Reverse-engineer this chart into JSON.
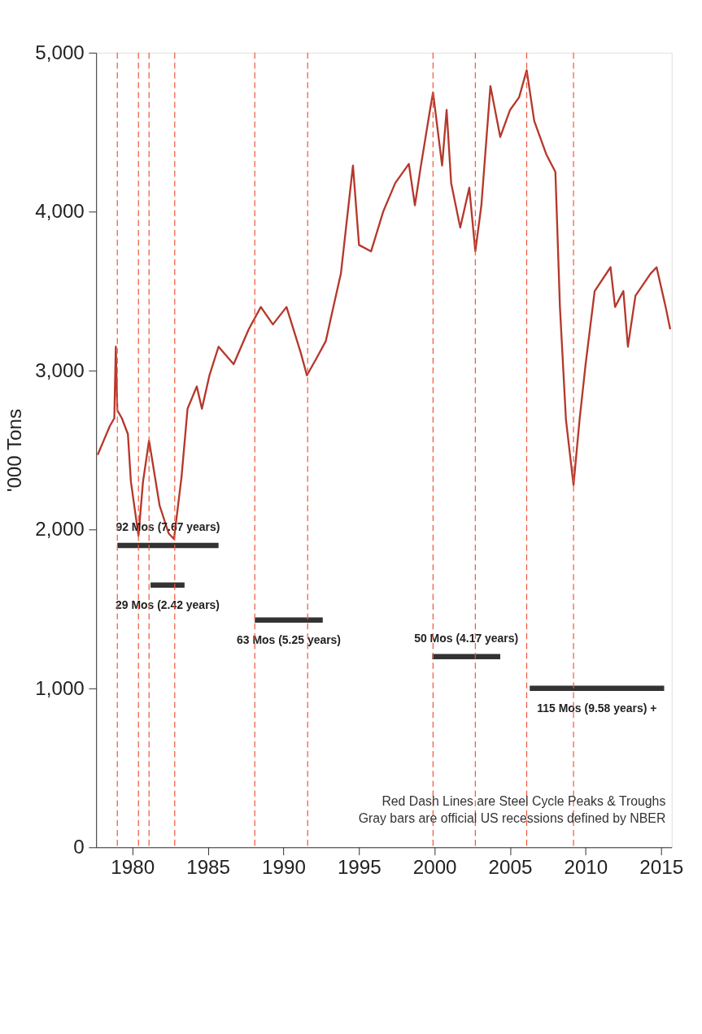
{
  "chart_data": {
    "type": "line",
    "ylabel": "'000 Tons",
    "xlim": [
      1977.6,
      2015.7
    ],
    "xticks": [
      1980,
      1985,
      1990,
      1995,
      2000,
      2005,
      2010,
      2015
    ],
    "ylim": [
      0,
      5000
    ],
    "yticks": [
      {
        "value": 0,
        "label": "0"
      },
      {
        "value": 1000,
        "label": "1,000"
      },
      {
        "value": 2000,
        "label": "2,000"
      },
      {
        "value": 3000,
        "label": "3,000"
      },
      {
        "value": 4000,
        "label": "4,000"
      },
      {
        "value": 5000,
        "label": "5,000"
      }
    ],
    "grid": false,
    "series": [
      {
        "color": "#b5382c",
        "x": [
          1977.7,
          1978.1,
          1978.5,
          1978.8,
          1978.9,
          1979.0,
          1979.3,
          1979.7,
          1979.9,
          1980.4,
          1980.7,
          1981.1,
          1981.8,
          1982.4,
          1982.75,
          1983.25,
          1983.65,
          1984.26,
          1984.6,
          1985.1,
          1985.7,
          1986.7,
          1987.7,
          1988.5,
          1989.3,
          1990.2,
          1991.15,
          1991.55,
          1992.2,
          1992.8,
          1993.3,
          1993.8,
          1994.6,
          1995.0,
          1995.8,
          1996.6,
          1997.4,
          1998.3,
          1998.7,
          1999.1,
          1999.7,
          1999.9,
          2000.5,
          2000.8,
          2001.1,
          2001.7,
          2002.3,
          2002.7,
          2003.1,
          2003.7,
          2004.35,
          2005.0,
          2005.6,
          2006.1,
          2006.6,
          2007.4,
          2008.0,
          2008.3,
          2008.7,
          2009.2,
          2009.6,
          2010.0,
          2010.6,
          2011.65,
          2011.95,
          2012.5,
          2012.8,
          2013.3,
          2014.3,
          2014.7,
          2015.3,
          2015.6
        ],
        "values": [
          2470,
          2560,
          2650,
          2700,
          3150,
          2750,
          2700,
          2600,
          2300,
          1960,
          2300,
          2560,
          2150,
          1975,
          1940,
          2330,
          2760,
          2900,
          2760,
          2970,
          3150,
          3040,
          3260,
          3400,
          3290,
          3400,
          3110,
          2970,
          3080,
          3185,
          3400,
          3610,
          4290,
          3790,
          3750,
          4000,
          4180,
          4300,
          4040,
          4290,
          4640,
          4750,
          4290,
          4640,
          4180,
          3900,
          4150,
          3750,
          4040,
          4790,
          4470,
          4640,
          4720,
          4890,
          4570,
          4360,
          4250,
          3400,
          2690,
          2280,
          2690,
          3040,
          3500,
          3650,
          3400,
          3500,
          3150,
          3470,
          3610,
          3650,
          3400,
          3260
        ]
      },
      {
        "name": "92 Mos (7.67 years)",
        "color": "#333333",
        "x": [
          1979.0,
          1985.7
        ],
        "values": [
          1900,
          1900
        ]
      },
      {
        "name": "29 Mos (2.42 years)",
        "color": "#333333",
        "x": [
          1981.2,
          1983.45
        ],
        "values": [
          1650,
          1650
        ]
      },
      {
        "name": "63 Mos (5.25 years)",
        "color": "#333333",
        "x": [
          1988.1,
          1992.6
        ],
        "values": [
          1430,
          1430
        ]
      },
      {
        "name": "50 Mos (4.17 years)",
        "color": "#333333",
        "x": [
          1999.85,
          2004.35
        ],
        "values": [
          1200,
          1200
        ]
      },
      {
        "name": "115 Mos (9.58 years) +",
        "color": "#333333",
        "x": [
          2006.3,
          2015.2
        ],
        "values": [
          1000,
          1000
        ]
      }
    ],
    "ref_lines": [
      {
        "axis": "x",
        "value": 1979.0,
        "color": "#f0583c",
        "line_style": "dashed"
      },
      {
        "axis": "x",
        "value": 1980.4,
        "color": "#f0583c",
        "line_style": "dashed"
      },
      {
        "axis": "x",
        "value": 1981.1,
        "color": "#f0583c",
        "line_style": "dashed"
      },
      {
        "axis": "x",
        "value": 1982.8,
        "color": "#f0583c",
        "line_style": "dashed"
      },
      {
        "axis": "x",
        "value": 1988.1,
        "color": "#f0583c",
        "line_style": "dashed"
      },
      {
        "axis": "x",
        "value": 1991.6,
        "color": "#f0583c",
        "line_style": "dashed"
      },
      {
        "axis": "x",
        "value": 1999.9,
        "color": "#f0583c",
        "line_style": "dashed"
      },
      {
        "axis": "x",
        "value": 2002.7,
        "color": "#f0583c",
        "line_style": "dashed"
      },
      {
        "axis": "x",
        "value": 2006.1,
        "color": "#f0583c",
        "line_style": "dashed"
      },
      {
        "axis": "x",
        "value": 2009.2,
        "color": "#f0583c",
        "line_style": "dashed"
      }
    ],
    "annotations": [
      "Red Dash Lines are Steel Cycle Peaks & Troughs",
      "Gray bars are official US recessions defined by NBER"
    ]
  }
}
